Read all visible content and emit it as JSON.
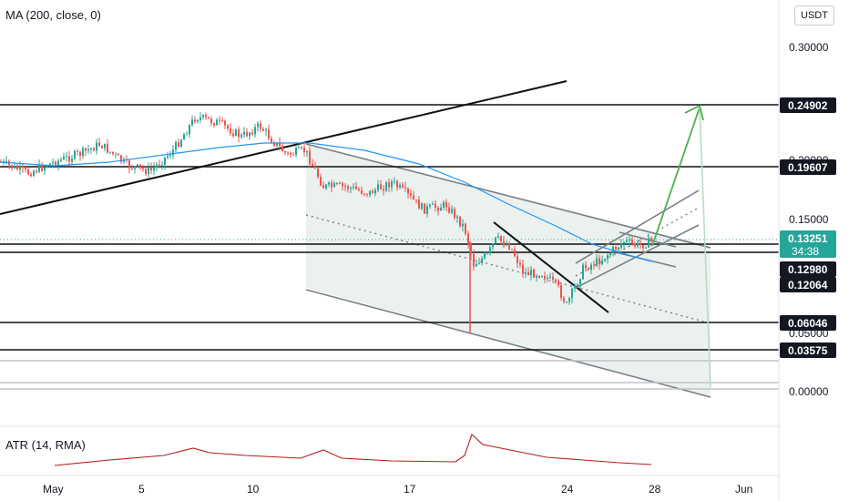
{
  "indicators": {
    "ma_label": "MA (200, close, 0)",
    "atr_label": "ATR (14, RMA)"
  },
  "currency": "USDT",
  "colors": {
    "candle_up": "#26a69a",
    "candle_down": "#ef5350",
    "ma": "#2196f3",
    "atr": "#b71c1c",
    "arrow": "#4caf50",
    "channel_fill": "#e8efec",
    "label_dark": "#131722",
    "price_badge": "#26a69a"
  },
  "chart_data": {
    "type": "candlestick",
    "y_ticks": [
      "0.30000",
      "0.15000",
      "0.05000",
      "0.00000"
    ],
    "x_ticks": [
      "May",
      "5",
      "10",
      "17",
      "24",
      "28",
      "Jun"
    ],
    "price_levels": [
      {
        "value": "0.24902",
        "style": "dark"
      },
      {
        "value": "0.19607",
        "style": "dark"
      },
      {
        "value": "0.13251",
        "style": "current",
        "countdown": "34:38"
      },
      {
        "value": "0.12980",
        "style": "dark"
      },
      {
        "value": "0.12064",
        "style": "dark"
      },
      {
        "value": "0.06046",
        "style": "dark"
      },
      {
        "value": "0.03575",
        "style": "dark"
      }
    ],
    "partial_tick": "0.20000",
    "ma_period": 200,
    "atr_period": 14
  }
}
